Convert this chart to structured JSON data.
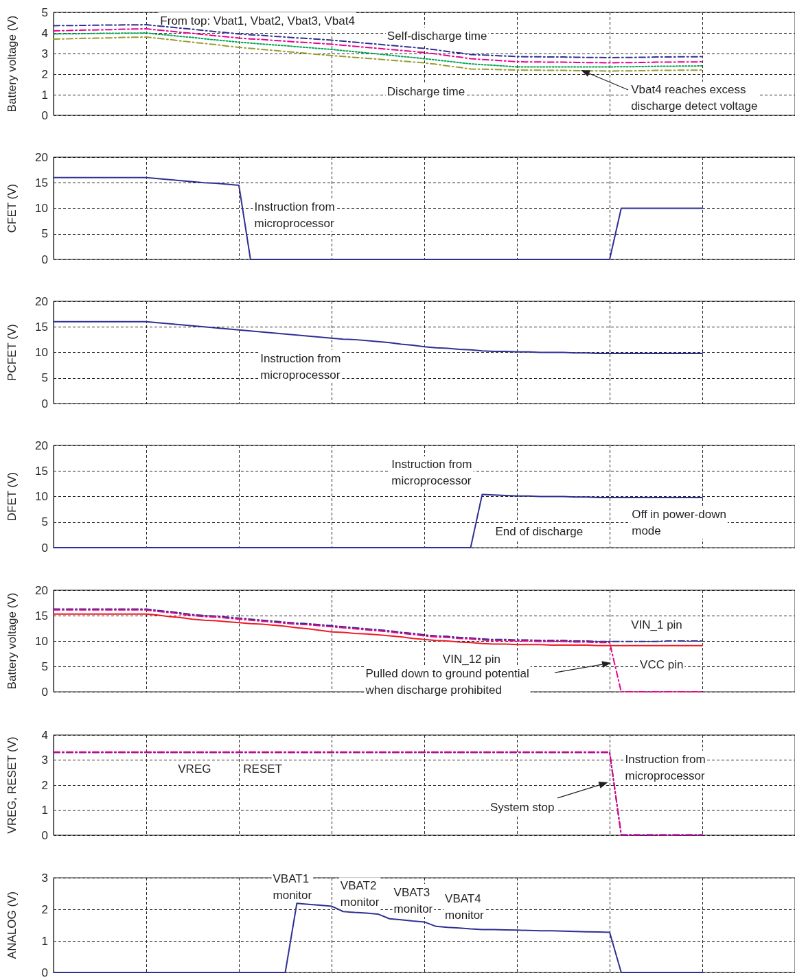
{
  "chart_data": [
    {
      "type": "line",
      "ylabel": "Battery voltage (V)",
      "categories": [
        null,
        null,
        null,
        null,
        null,
        null,
        null,
        null,
        null,
        null,
        null,
        null,
        null,
        null,
        null,
        null,
        null,
        null,
        null,
        null,
        null,
        null,
        null,
        null,
        null,
        null,
        null,
        null,
        null,
        null,
        null,
        null,
        null,
        null,
        null,
        null,
        null,
        null,
        null,
        null,
        null,
        null,
        null,
        null,
        null,
        null,
        null,
        null,
        null,
        null,
        null,
        null,
        null,
        null,
        null,
        null,
        null,
        null,
        null,
        null,
        null,
        null,
        null,
        null,
        null
      ],
      "ylim": [
        0,
        5
      ],
      "yticks": [
        0,
        1,
        2,
        3,
        4,
        5
      ],
      "tick_labels": "y",
      "grid": true,
      "series": [
        {
          "color": "#2e3192",
          "line_style": "dashed",
          "values": [
            4.35,
            4.36,
            4.36,
            4.37,
            4.38,
            4.38,
            4.39,
            4.39,
            4.4,
            4.34,
            4.29,
            4.23,
            4.18,
            4.12,
            4.06,
            4.01,
            3.95,
            3.91,
            3.88,
            3.84,
            3.8,
            3.76,
            3.73,
            3.69,
            3.65,
            3.6,
            3.55,
            3.5,
            3.45,
            3.4,
            3.35,
            3.3,
            3.25,
            3.18,
            3.1,
            3.03,
            2.95,
            2.93,
            2.9,
            2.88,
            2.85,
            2.84,
            2.84,
            2.83,
            2.83,
            2.82,
            2.81,
            2.81,
            2.8,
            2.81,
            2.81,
            2.82,
            2.83,
            2.83,
            2.84,
            2.84,
            2.85,
            null,
            null,
            null,
            null,
            null,
            null,
            null,
            null
          ]
        },
        {
          "color": "#ec008c",
          "line_style": "dashed",
          "values": [
            4.1,
            4.11,
            4.13,
            4.14,
            4.15,
            4.16,
            4.18,
            4.19,
            4.2,
            4.14,
            4.09,
            4.03,
            3.98,
            3.92,
            3.86,
            3.81,
            3.75,
            3.71,
            3.68,
            3.64,
            3.6,
            3.56,
            3.53,
            3.49,
            3.45,
            3.4,
            3.35,
            3.3,
            3.25,
            3.2,
            3.15,
            3.1,
            3.05,
            2.98,
            2.9,
            2.83,
            2.75,
            2.71,
            2.68,
            2.64,
            2.6,
            2.59,
            2.59,
            2.58,
            2.58,
            2.57,
            2.56,
            2.56,
            2.55,
            2.56,
            2.56,
            2.57,
            2.58,
            2.58,
            2.59,
            2.59,
            2.6,
            null,
            null,
            null,
            null,
            null,
            null,
            null,
            null
          ]
        },
        {
          "color": "#00a651",
          "line_style": "dotted",
          "values": [
            3.95,
            3.96,
            3.96,
            3.97,
            3.98,
            3.98,
            3.99,
            3.99,
            4.0,
            3.94,
            3.89,
            3.83,
            3.78,
            3.72,
            3.66,
            3.61,
            3.55,
            3.51,
            3.46,
            3.42,
            3.38,
            3.33,
            3.29,
            3.24,
            3.2,
            3.14,
            3.09,
            3.03,
            2.98,
            2.92,
            2.86,
            2.81,
            2.75,
            2.69,
            2.63,
            2.56,
            2.5,
            2.46,
            2.43,
            2.39,
            2.35,
            2.35,
            2.35,
            2.35,
            2.35,
            2.35,
            2.35,
            2.35,
            2.35,
            2.36,
            2.36,
            2.37,
            2.38,
            2.38,
            2.39,
            2.39,
            2.4,
            null,
            null,
            null,
            null,
            null,
            null,
            null,
            null
          ]
        },
        {
          "color": "#9a9a32",
          "line_style": "dashed",
          "values": [
            3.7,
            3.71,
            3.73,
            3.74,
            3.75,
            3.76,
            3.78,
            3.79,
            3.8,
            3.74,
            3.68,
            3.61,
            3.55,
            3.49,
            3.43,
            3.36,
            3.3,
            3.25,
            3.2,
            3.15,
            3.1,
            3.05,
            3.0,
            2.95,
            2.9,
            2.86,
            2.81,
            2.77,
            2.73,
            2.68,
            2.64,
            2.59,
            2.55,
            2.48,
            2.4,
            2.33,
            2.25,
            2.24,
            2.23,
            2.21,
            2.2,
            2.19,
            2.19,
            2.18,
            2.18,
            2.17,
            2.16,
            2.16,
            2.15,
            2.16,
            2.16,
            2.17,
            2.18,
            2.18,
            2.19,
            2.19,
            2.2,
            null,
            null,
            null,
            null,
            null,
            null,
            null,
            null
          ]
        }
      ],
      "annotations": [
        "From top: Vbat1, Vbat2, Vbat3, Vbat4",
        "Self-discharge time",
        "Discharge time",
        "Vbat4 reaches excess\ndischarge detect voltage"
      ]
    },
    {
      "type": "line",
      "ylabel": "CFET (V)",
      "categories": [
        null,
        null,
        null,
        null,
        null,
        null,
        null,
        null,
        null,
        null,
        null,
        null,
        null,
        null,
        null,
        null,
        null,
        null,
        null,
        null,
        null,
        null,
        null,
        null,
        null,
        null,
        null,
        null,
        null,
        null,
        null,
        null,
        null,
        null,
        null,
        null,
        null,
        null,
        null,
        null,
        null,
        null,
        null,
        null,
        null,
        null,
        null,
        null,
        null,
        null,
        null,
        null,
        null,
        null,
        null,
        null,
        null,
        null,
        null,
        null,
        null,
        null,
        null,
        null,
        null
      ],
      "ylim": [
        0,
        20
      ],
      "yticks": [
        0,
        5,
        10,
        15,
        20
      ],
      "tick_labels": "y",
      "grid": true,
      "series": [
        {
          "color": "#2e3192",
          "line_style": "solid",
          "values": [
            16,
            16,
            16,
            16,
            16,
            16,
            16,
            16,
            16,
            15.8,
            15.6,
            15.4,
            15.2,
            15.0,
            14.9,
            14.7,
            14.5,
            0,
            0,
            0,
            0,
            0,
            0,
            0,
            0,
            0,
            0,
            0,
            0,
            0,
            0,
            0,
            0,
            0,
            0,
            0,
            0,
            0,
            0,
            0,
            0,
            0,
            0,
            0,
            0,
            0,
            0,
            0,
            0,
            10,
            10,
            10,
            10,
            10,
            10,
            10,
            10,
            null,
            null,
            null,
            null,
            null,
            null,
            null,
            null
          ]
        }
      ],
      "annotations": [
        "Instruction from\nmicroprocessor"
      ]
    },
    {
      "type": "line",
      "ylabel": "PCFET (V)",
      "categories": [
        null,
        null,
        null,
        null,
        null,
        null,
        null,
        null,
        null,
        null,
        null,
        null,
        null,
        null,
        null,
        null,
        null,
        null,
        null,
        null,
        null,
        null,
        null,
        null,
        null,
        null,
        null,
        null,
        null,
        null,
        null,
        null,
        null,
        null,
        null,
        null,
        null,
        null,
        null,
        null,
        null,
        null,
        null,
        null,
        null,
        null,
        null,
        null,
        null,
        null,
        null,
        null,
        null,
        null,
        null,
        null,
        null,
        null,
        null,
        null,
        null,
        null,
        null,
        null,
        null
      ],
      "ylim": [
        0,
        20
      ],
      "yticks": [
        0,
        5,
        10,
        15,
        20
      ],
      "tick_labels": "y",
      "grid": true,
      "series": [
        {
          "color": "#2e3192",
          "line_style": "solid",
          "values": [
            16,
            16,
            16,
            16,
            16,
            16,
            16,
            16,
            16,
            15.8,
            15.6,
            15.4,
            15.2,
            15.0,
            14.8,
            14.6,
            14.4,
            14.2,
            14.0,
            13.8,
            13.6,
            13.4,
            13.2,
            13.0,
            12.8,
            12.6,
            12.5,
            12.3,
            12.1,
            11.9,
            11.6,
            11.4,
            11.1,
            10.9,
            10.8,
            10.6,
            10.5,
            10.3,
            10.2,
            10.2,
            10.1,
            10.1,
            10.0,
            10.0,
            10.0,
            9.9,
            9.9,
            9.8,
            9.8,
            9.8,
            9.8,
            9.8,
            9.8,
            9.8,
            9.8,
            9.8,
            9.8,
            null,
            null,
            null,
            null,
            null,
            null,
            null,
            null
          ]
        }
      ],
      "annotations": [
        "Instruction from\nmicroprocessor"
      ]
    },
    {
      "type": "line",
      "ylabel": "DFET (V)",
      "categories": [
        null,
        null,
        null,
        null,
        null,
        null,
        null,
        null,
        null,
        null,
        null,
        null,
        null,
        null,
        null,
        null,
        null,
        null,
        null,
        null,
        null,
        null,
        null,
        null,
        null,
        null,
        null,
        null,
        null,
        null,
        null,
        null,
        null,
        null,
        null,
        null,
        null,
        null,
        null,
        null,
        null,
        null,
        null,
        null,
        null,
        null,
        null,
        null,
        null,
        null,
        null,
        null,
        null,
        null,
        null,
        null,
        null,
        null,
        null,
        null,
        null,
        null,
        null,
        null,
        null
      ],
      "ylim": [
        0,
        20
      ],
      "yticks": [
        0,
        5,
        10,
        15,
        20
      ],
      "tick_labels": "y",
      "grid": true,
      "series": [
        {
          "color": "#2e3192",
          "line_style": "solid",
          "values": [
            0,
            0,
            0,
            0,
            0,
            0,
            0,
            0,
            0,
            0,
            0,
            0,
            0,
            0,
            0,
            0,
            0,
            0,
            0,
            0,
            0,
            0,
            0,
            0,
            0,
            0,
            0,
            0,
            0,
            0,
            0,
            0,
            0,
            0,
            0,
            0,
            0,
            10.4,
            10.3,
            10.2,
            10.1,
            10.1,
            10.0,
            10.0,
            10.0,
            9.9,
            9.9,
            9.8,
            9.8,
            9.8,
            9.8,
            9.8,
            9.8,
            9.8,
            9.8,
            9.8,
            9.8,
            null,
            null,
            null,
            null,
            null,
            null,
            null,
            null
          ]
        }
      ],
      "annotations": [
        "Instruction from\nmicroprocessor",
        "End of discharge",
        "Off in power-down\nmode"
      ]
    },
    {
      "type": "line",
      "ylabel": "Battery voltage (V)",
      "categories": [
        null,
        null,
        null,
        null,
        null,
        null,
        null,
        null,
        null,
        null,
        null,
        null,
        null,
        null,
        null,
        null,
        null,
        null,
        null,
        null,
        null,
        null,
        null,
        null,
        null,
        null,
        null,
        null,
        null,
        null,
        null,
        null,
        null,
        null,
        null,
        null,
        null,
        null,
        null,
        null,
        null,
        null,
        null,
        null,
        null,
        null,
        null,
        null,
        null,
        null,
        null,
        null,
        null,
        null,
        null,
        null,
        null,
        null,
        null,
        null,
        null,
        null,
        null,
        null,
        null
      ],
      "ylim": [
        0,
        20
      ],
      "yticks": [
        0,
        5,
        10,
        15,
        20
      ],
      "tick_labels": "y",
      "grid": true,
      "series": [
        {
          "color": "#2e3192",
          "line_style": "dashed",
          "values": [
            16.3,
            16.3,
            16.3,
            16.3,
            16.3,
            16.3,
            16.3,
            16.3,
            16.3,
            16.0,
            15.8,
            15.5,
            15.2,
            15.0,
            14.9,
            14.7,
            14.5,
            14.3,
            14.1,
            13.9,
            13.7,
            13.5,
            13.4,
            13.2,
            13.0,
            12.8,
            12.6,
            12.4,
            12.2,
            12.0,
            11.7,
            11.5,
            11.2,
            11.0,
            10.9,
            10.7,
            10.6,
            10.4,
            10.3,
            10.3,
            10.2,
            10.2,
            10.1,
            10.1,
            10.1,
            10.0,
            10.0,
            9.9,
            9.9,
            9.9,
            9.9,
            9.9,
            9.9,
            10.0,
            10.0,
            10.0,
            10.0,
            null,
            null,
            null,
            null,
            null,
            null,
            null,
            null
          ]
        },
        {
          "color": "#ec008c",
          "line_style": "dashed",
          "values": [
            16.1,
            16.1,
            16.1,
            16.1,
            16.1,
            16.1,
            16.1,
            16.1,
            16.1,
            15.8,
            15.6,
            15.3,
            15.0,
            14.8,
            14.7,
            14.5,
            14.3,
            14.1,
            13.9,
            13.7,
            13.5,
            13.3,
            13.2,
            13.0,
            12.8,
            12.6,
            12.4,
            12.2,
            12.0,
            11.8,
            11.5,
            11.3,
            11.0,
            10.8,
            10.7,
            10.5,
            10.4,
            10.2,
            10.1,
            10.1,
            10.0,
            10.0,
            9.9,
            9.9,
            9.9,
            9.8,
            9.8,
            9.7,
            9.7,
            0,
            0,
            0,
            0,
            0,
            0,
            0,
            0,
            null,
            null,
            null,
            null,
            null,
            null,
            null,
            null
          ]
        },
        {
          "color": "#ed1c24",
          "line_style": "solid",
          "values": [
            15.3,
            15.3,
            15.3,
            15.3,
            15.3,
            15.3,
            15.3,
            15.3,
            15.3,
            15.1,
            14.8,
            14.6,
            14.3,
            14.1,
            14.0,
            13.8,
            13.6,
            13.4,
            13.3,
            13.1,
            12.9,
            12.6,
            12.4,
            12.1,
            11.8,
            11.7,
            11.5,
            11.4,
            11.2,
            11.0,
            10.8,
            10.5,
            10.3,
            10.1,
            10.0,
            9.8,
            9.7,
            9.5,
            9.4,
            9.4,
            9.3,
            9.3,
            9.3,
            9.2,
            9.2,
            9.2,
            9.2,
            9.1,
            9.1,
            9.1,
            9.1,
            9.1,
            9.1,
            9.1,
            9.1,
            9.1,
            9.1,
            null,
            null,
            null,
            null,
            null,
            null,
            null,
            null
          ]
        }
      ],
      "annotations": [
        "VIN_1 pin",
        "VIN_12 pin",
        "VCC pin",
        "Pulled down to ground potential\nwhen discharge prohibited"
      ]
    },
    {
      "type": "line",
      "ylabel": "VREG, RESET (V)",
      "categories": [
        null,
        null,
        null,
        null,
        null,
        null,
        null,
        null,
        null,
        null,
        null,
        null,
        null,
        null,
        null,
        null,
        null,
        null,
        null,
        null,
        null,
        null,
        null,
        null,
        null,
        null,
        null,
        null,
        null,
        null,
        null,
        null,
        null,
        null,
        null,
        null,
        null,
        null,
        null,
        null,
        null,
        null,
        null,
        null,
        null,
        null,
        null,
        null,
        null,
        null,
        null,
        null,
        null,
        null,
        null,
        null,
        null,
        null,
        null,
        null,
        null,
        null,
        null,
        null,
        null
      ],
      "ylim": [
        0,
        4
      ],
      "yticks": [
        0,
        1,
        2,
        3,
        4
      ],
      "tick_labels": "y",
      "grid": true,
      "series": [
        {
          "color": "#2e3192",
          "line_style": "dashed",
          "values": [
            3.3,
            3.3,
            3.3,
            3.3,
            3.3,
            3.3,
            3.3,
            3.3,
            3.3,
            3.3,
            3.3,
            3.3,
            3.3,
            3.3,
            3.3,
            3.3,
            3.3,
            3.3,
            3.3,
            3.3,
            3.3,
            3.3,
            3.3,
            3.3,
            3.3,
            3.3,
            3.3,
            3.3,
            3.3,
            3.3,
            3.3,
            3.3,
            3.3,
            3.3,
            3.3,
            3.3,
            3.3,
            3.3,
            3.3,
            3.3,
            3.3,
            3.3,
            3.3,
            3.3,
            3.3,
            3.3,
            3.3,
            3.3,
            3.3,
            0,
            0,
            0,
            0,
            0,
            0,
            0,
            0,
            null,
            null,
            null,
            null,
            null,
            null,
            null,
            null
          ]
        },
        {
          "color": "#ec008c",
          "line_style": "dashed",
          "values": [
            3.32,
            3.32,
            3.32,
            3.32,
            3.32,
            3.32,
            3.32,
            3.32,
            3.32,
            3.32,
            3.32,
            3.32,
            3.32,
            3.32,
            3.32,
            3.32,
            3.32,
            3.32,
            3.32,
            3.32,
            3.32,
            3.32,
            3.32,
            3.32,
            3.32,
            3.32,
            3.32,
            3.32,
            3.32,
            3.32,
            3.32,
            3.32,
            3.32,
            3.32,
            3.32,
            3.32,
            3.32,
            3.32,
            3.32,
            3.32,
            3.32,
            3.32,
            3.32,
            3.32,
            3.32,
            3.32,
            3.32,
            3.32,
            3.32,
            0.02,
            0.02,
            0.02,
            0.02,
            0.02,
            0.02,
            0.02,
            0.02,
            null,
            null,
            null,
            null,
            null,
            null,
            null,
            null
          ]
        }
      ],
      "annotations": [
        "VREG",
        "RESET",
        "Instruction from\nmicroprocessor",
        "System stop"
      ]
    },
    {
      "type": "line",
      "ylabel": "ANALOG (V)",
      "categories": [
        null,
        null,
        null,
        null,
        null,
        null,
        null,
        null,
        null,
        null,
        null,
        null,
        null,
        null,
        null,
        null,
        null,
        null,
        null,
        null,
        null,
        null,
        null,
        null,
        null,
        null,
        null,
        null,
        null,
        null,
        null,
        null,
        null,
        null,
        null,
        null,
        null,
        null,
        null,
        null,
        null,
        null,
        null,
        null,
        null,
        null,
        null,
        null,
        null,
        null,
        null,
        null,
        null,
        null,
        null,
        null,
        null,
        null,
        null,
        null,
        null,
        null,
        null,
        null,
        null
      ],
      "ylim": [
        0,
        3
      ],
      "yticks": [
        0,
        1,
        2,
        3
      ],
      "tick_labels": "y",
      "grid": true,
      "series": [
        {
          "color": "#2e3192",
          "line_style": "solid",
          "values": [
            0,
            0,
            0,
            0,
            0,
            0,
            0,
            0,
            0,
            0,
            0,
            0,
            0,
            0,
            0,
            0,
            0,
            0,
            0,
            0,
            0,
            2.19,
            2.16,
            2.13,
            2.1,
            1.93,
            1.9,
            1.88,
            1.85,
            1.7,
            1.67,
            1.63,
            1.6,
            1.46,
            1.43,
            1.41,
            1.38,
            1.36,
            1.36,
            1.35,
            1.34,
            1.33,
            1.32,
            1.32,
            1.31,
            1.3,
            1.29,
            1.28,
            1.27,
            0,
            0,
            0,
            0,
            0,
            0,
            0,
            0,
            null,
            null,
            null,
            null,
            null,
            null,
            null,
            null
          ]
        }
      ],
      "annotations": [
        "VBAT1\nmonitor",
        "VBAT2\nmonitor",
        "VBAT3\nmonitor",
        "VBAT4\nmonitor"
      ]
    }
  ]
}
